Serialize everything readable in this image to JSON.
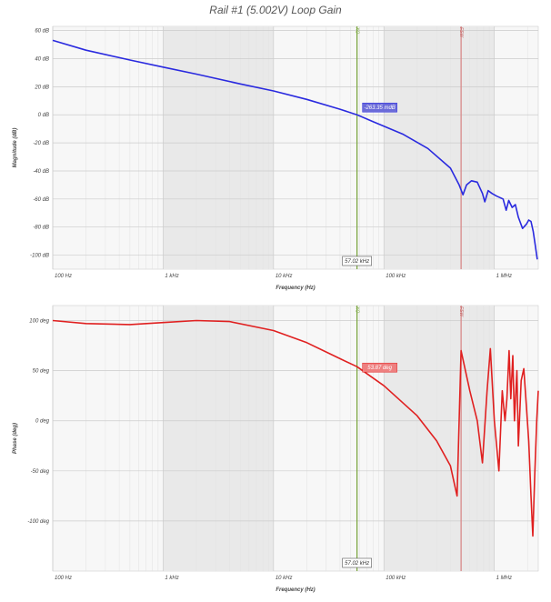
{
  "title": "Rail #1 (5.002V) Loop Gain",
  "colors": {
    "magnitude": "#2a2adf",
    "phase": "#e02020",
    "cursor_xo": "#7ea844",
    "cursor_fsw": "#d98a8a",
    "shade": "#e9e9e9"
  },
  "cursors": {
    "xo_label": "XO",
    "fsw_label": "FSW",
    "xo_freq_hz": 57020,
    "fsw_freq_hz": 500000,
    "xo_freq_text": "57.02 kHz"
  },
  "chart_data": [
    {
      "type": "line",
      "name": "magnitude",
      "xlabel": "Frequency (Hz)",
      "ylabel": "Magnitude (dB)",
      "xscale": "log",
      "xlim": [
        100,
        2500000
      ],
      "ylim": [
        -110,
        63
      ],
      "x_ticks": [
        {
          "v": 100,
          "label": "100 Hz"
        },
        {
          "v": 1000,
          "label": "1 kHz"
        },
        {
          "v": 10000,
          "label": "10 kHz"
        },
        {
          "v": 100000,
          "label": "100 kHz"
        },
        {
          "v": 1000000,
          "label": "1 MHz"
        }
      ],
      "y_ticks": [
        {
          "v": 60,
          "label": "60 dB"
        },
        {
          "v": 40,
          "label": "40 dB"
        },
        {
          "v": 20,
          "label": "20 dB"
        },
        {
          "v": 0,
          "label": "0 dB"
        },
        {
          "v": -20,
          "label": "-20 dB"
        },
        {
          "v": -40,
          "label": "-40 dB"
        },
        {
          "v": -60,
          "label": "-60 dB"
        },
        {
          "v": -80,
          "label": "-80 dB"
        },
        {
          "v": -100,
          "label": "-100 dB"
        }
      ],
      "annotation": {
        "x": 57020,
        "y": 0,
        "text": "-263.35 mdB"
      },
      "points": [
        [
          100,
          53
        ],
        [
          200,
          46
        ],
        [
          500,
          39
        ],
        [
          1000,
          34
        ],
        [
          2000,
          29
        ],
        [
          5000,
          22
        ],
        [
          10000,
          17
        ],
        [
          20000,
          11
        ],
        [
          40000,
          4
        ],
        [
          57020,
          0
        ],
        [
          80000,
          -5
        ],
        [
          150000,
          -14
        ],
        [
          250000,
          -24
        ],
        [
          400000,
          -38
        ],
        [
          480000,
          -50
        ],
        [
          520000,
          -57
        ],
        [
          560000,
          -50
        ],
        [
          620000,
          -47
        ],
        [
          700000,
          -48
        ],
        [
          780000,
          -56
        ],
        [
          820000,
          -62
        ],
        [
          880000,
          -54
        ],
        [
          950000,
          -56
        ],
        [
          1050000,
          -58
        ],
        [
          1200000,
          -60
        ],
        [
          1280000,
          -68
        ],
        [
          1350000,
          -61
        ],
        [
          1450000,
          -66
        ],
        [
          1550000,
          -64
        ],
        [
          1650000,
          -73
        ],
        [
          1800000,
          -81
        ],
        [
          1950000,
          -78
        ],
        [
          2050000,
          -75
        ],
        [
          2150000,
          -76
        ],
        [
          2250000,
          -83
        ],
        [
          2350000,
          -93
        ],
        [
          2450000,
          -103
        ]
      ]
    },
    {
      "type": "line",
      "name": "phase",
      "xlabel": "Frequency (Hz)",
      "ylabel": "Phase (deg)",
      "xscale": "log",
      "xlim": [
        100,
        2500000
      ],
      "ylim": [
        -150,
        115
      ],
      "x_ticks": [
        {
          "v": 100,
          "label": "100 Hz"
        },
        {
          "v": 1000,
          "label": "1 kHz"
        },
        {
          "v": 10000,
          "label": "10 kHz"
        },
        {
          "v": 100000,
          "label": "100 kHz"
        },
        {
          "v": 1000000,
          "label": "1 MHz"
        }
      ],
      "y_ticks": [
        {
          "v": 100,
          "label": "100 deg"
        },
        {
          "v": 50,
          "label": "50 deg"
        },
        {
          "v": 0,
          "label": "0 deg"
        },
        {
          "v": -50,
          "label": "-50 deg"
        },
        {
          "v": -100,
          "label": "-100 deg"
        }
      ],
      "annotation": {
        "x": 57020,
        "y": 54,
        "text": "53.87 deg"
      },
      "points": [
        [
          100,
          100
        ],
        [
          200,
          97
        ],
        [
          500,
          96
        ],
        [
          1000,
          98
        ],
        [
          2000,
          100
        ],
        [
          4000,
          99
        ],
        [
          10000,
          90
        ],
        [
          20000,
          78
        ],
        [
          40000,
          62
        ],
        [
          57020,
          54
        ],
        [
          100000,
          35
        ],
        [
          200000,
          5
        ],
        [
          300000,
          -20
        ],
        [
          400000,
          -45
        ],
        [
          460000,
          -75
        ],
        [
          500000,
          70
        ],
        [
          600000,
          30
        ],
        [
          700000,
          0
        ],
        [
          780000,
          -42
        ],
        [
          860000,
          30
        ],
        [
          920000,
          72
        ],
        [
          1000000,
          0
        ],
        [
          1100000,
          -50
        ],
        [
          1180000,
          30
        ],
        [
          1250000,
          0
        ],
        [
          1300000,
          22
        ],
        [
          1360000,
          70
        ],
        [
          1410000,
          22
        ],
        [
          1470000,
          65
        ],
        [
          1520000,
          0
        ],
        [
          1600000,
          50
        ],
        [
          1650000,
          -25
        ],
        [
          1750000,
          40
        ],
        [
          1850000,
          52
        ],
        [
          1950000,
          15
        ],
        [
          2050000,
          -20
        ],
        [
          2150000,
          -75
        ],
        [
          2230000,
          -115
        ],
        [
          2320000,
          -55
        ],
        [
          2420000,
          0
        ],
        [
          2500000,
          30
        ]
      ]
    }
  ]
}
